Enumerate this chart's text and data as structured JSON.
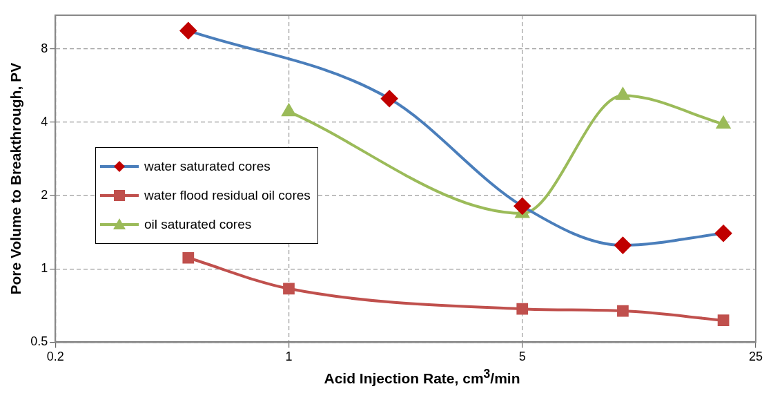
{
  "chart_data": {
    "type": "line",
    "xlabel": "Acid Injection Rate, cm$^{3}$/min",
    "ylabel": "Pore Volume to Breakthrough, PV",
    "log": "xy",
    "xlim": [
      0.2,
      25
    ],
    "xticks": [
      0.2,
      1,
      5,
      25
    ],
    "ylim": [
      0.5,
      11
    ],
    "yticks": [
      0.5,
      1,
      2,
      4,
      8
    ],
    "grid": true,
    "legend": "left",
    "series": [
      {
        "name": "water saturated cores",
        "color": "#4a7ebb",
        "colors": [
          "#c00000",
          "#c00000",
          "#c00000",
          "#c00000",
          "#c00000"
        ],
        "marker": "diamond",
        "x": [
          0.5,
          2,
          5,
          10,
          20
        ],
        "values": [
          9.5,
          5.0,
          1.81,
          1.25,
          1.4
        ]
      },
      {
        "name": "water flood residual oil cores",
        "color": "#c0504d",
        "marker": "square",
        "x": [
          0.5,
          1,
          5,
          10,
          20
        ],
        "values": [
          1.11,
          0.83,
          0.685,
          0.672,
          0.615
        ]
      },
      {
        "name": "oil saturated cores",
        "color": "#9bbb59",
        "marker": "triangle",
        "x": [
          1,
          5,
          10,
          20
        ],
        "values": [
          4.42,
          1.69,
          5.15,
          3.93
        ]
      }
    ]
  }
}
